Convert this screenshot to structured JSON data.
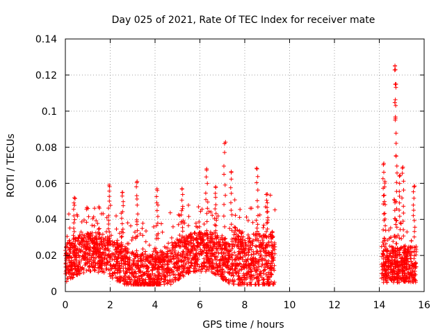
{
  "chart_data": {
    "type": "scatter",
    "title": "Day 025 of 2021, Rate Of TEC Index for receiver mate",
    "xlabel": "GPS time / hours",
    "ylabel": "ROTI / TECUs",
    "xlim": [
      0,
      16
    ],
    "ylim": [
      0,
      0.14
    ],
    "xticks": [
      "0",
      "2",
      "4",
      "6",
      "8",
      "10",
      "12",
      "14",
      "16"
    ],
    "yticks": [
      "0",
      "0.02",
      "0.04",
      "0.06",
      "0.08",
      "0.1",
      "0.12",
      "0.14"
    ],
    "grid": true,
    "marker": "plus",
    "color": "#ff0000",
    "series": [
      {
        "name": "ROTI",
        "data_segments": [
          {
            "x_start": 0.0,
            "x_end": 9.35,
            "note": "dense cluster, mostly 0.005-0.045"
          },
          {
            "x_start": 14.1,
            "x_end": 15.65,
            "note": "dense cluster, mostly 0.005-0.035"
          }
        ],
        "peaks": [
          {
            "x": 0.4,
            "y": 0.052
          },
          {
            "x": 1.95,
            "y": 0.059
          },
          {
            "x": 2.55,
            "y": 0.055
          },
          {
            "x": 3.2,
            "y": 0.061
          },
          {
            "x": 4.1,
            "y": 0.056
          },
          {
            "x": 5.2,
            "y": 0.057
          },
          {
            "x": 6.3,
            "y": 0.068
          },
          {
            "x": 6.7,
            "y": 0.058
          },
          {
            "x": 7.1,
            "y": 0.082
          },
          {
            "x": 7.4,
            "y": 0.066
          },
          {
            "x": 8.55,
            "y": 0.068
          },
          {
            "x": 9.0,
            "y": 0.054
          },
          {
            "x": 14.2,
            "y": 0.071
          },
          {
            "x": 14.25,
            "y": 0.061
          },
          {
            "x": 14.7,
            "y": 0.125
          },
          {
            "x": 14.72,
            "y": 0.123
          },
          {
            "x": 14.73,
            "y": 0.115
          },
          {
            "x": 14.72,
            "y": 0.096
          },
          {
            "x": 14.75,
            "y": 0.075
          },
          {
            "x": 14.9,
            "y": 0.064
          },
          {
            "x": 15.05,
            "y": 0.069
          },
          {
            "x": 15.55,
            "y": 0.058
          }
        ]
      }
    ]
  }
}
